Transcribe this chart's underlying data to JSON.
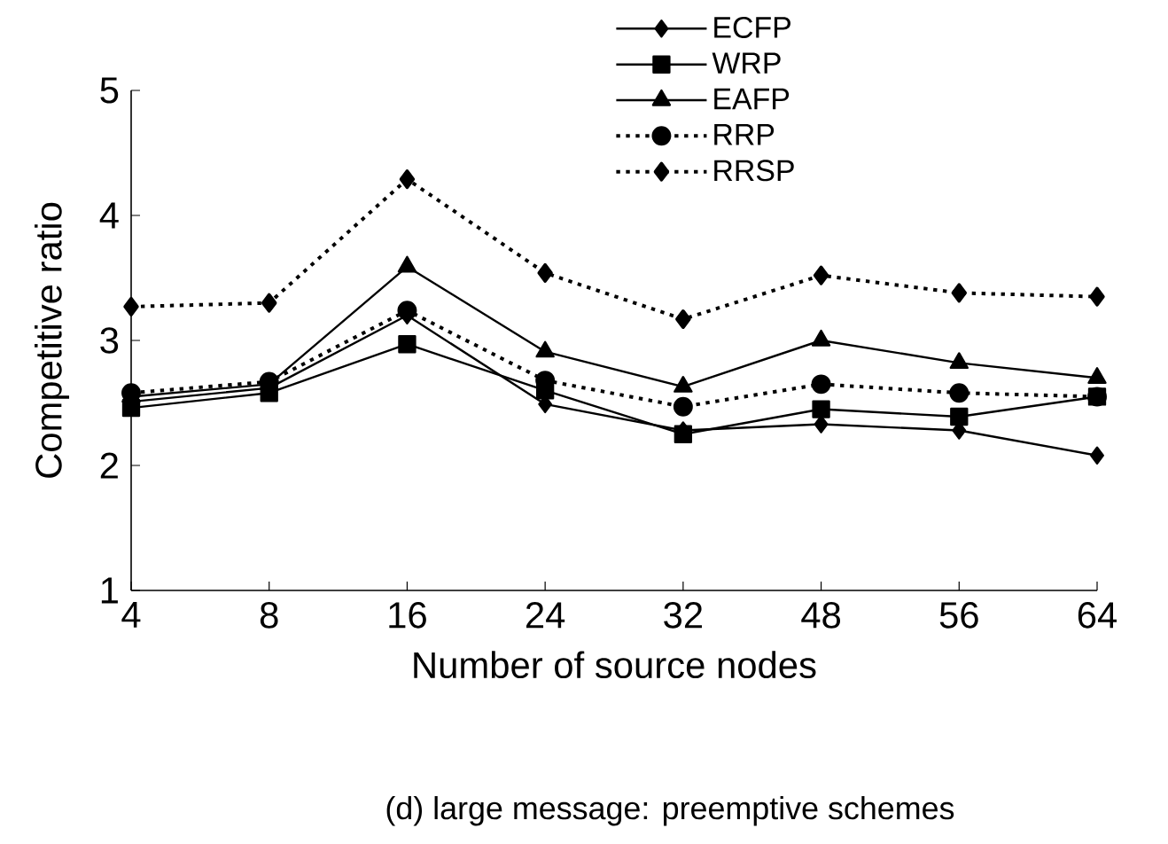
{
  "chart_data": {
    "type": "line",
    "xlabel": "Number of source nodes",
    "ylabel": "Competitive ratio",
    "annotations": [
      "(d) large message: preemptive schemes"
    ],
    "categories": [
      "4",
      "8",
      "16",
      "24",
      "32",
      "48",
      "56",
      "64"
    ],
    "ylim": [
      1,
      5
    ],
    "yticks": [
      1,
      2,
      3,
      4,
      5
    ],
    "legend": "top right",
    "series": [
      {
        "name": "ECFP",
        "color": "#000000",
        "marker": "diamond",
        "line_style": "solid",
        "values": [
          2.51,
          2.62,
          3.2,
          2.49,
          2.28,
          2.33,
          2.28,
          2.08
        ]
      },
      {
        "name": "WRP",
        "color": "#000000",
        "marker": "square",
        "line_style": "solid",
        "values": [
          2.46,
          2.58,
          2.97,
          2.6,
          2.25,
          2.45,
          2.39,
          2.55
        ]
      },
      {
        "name": "EAFP",
        "color": "#000000",
        "marker": "triangle",
        "line_style": "solid",
        "values": [
          2.55,
          2.65,
          3.59,
          2.91,
          2.63,
          3.0,
          2.82,
          2.7
        ]
      },
      {
        "name": "RRP",
        "color": "#000000",
        "marker": "circle",
        "line_style": "dotted",
        "values": [
          2.58,
          2.67,
          3.24,
          2.68,
          2.47,
          2.65,
          2.58,
          2.55
        ]
      },
      {
        "name": "RRSP",
        "color": "#000000",
        "marker": "diamond",
        "line_style": "dotted",
        "values": [
          3.27,
          3.3,
          4.29,
          3.54,
          3.17,
          3.52,
          3.38,
          3.35
        ]
      }
    ]
  }
}
